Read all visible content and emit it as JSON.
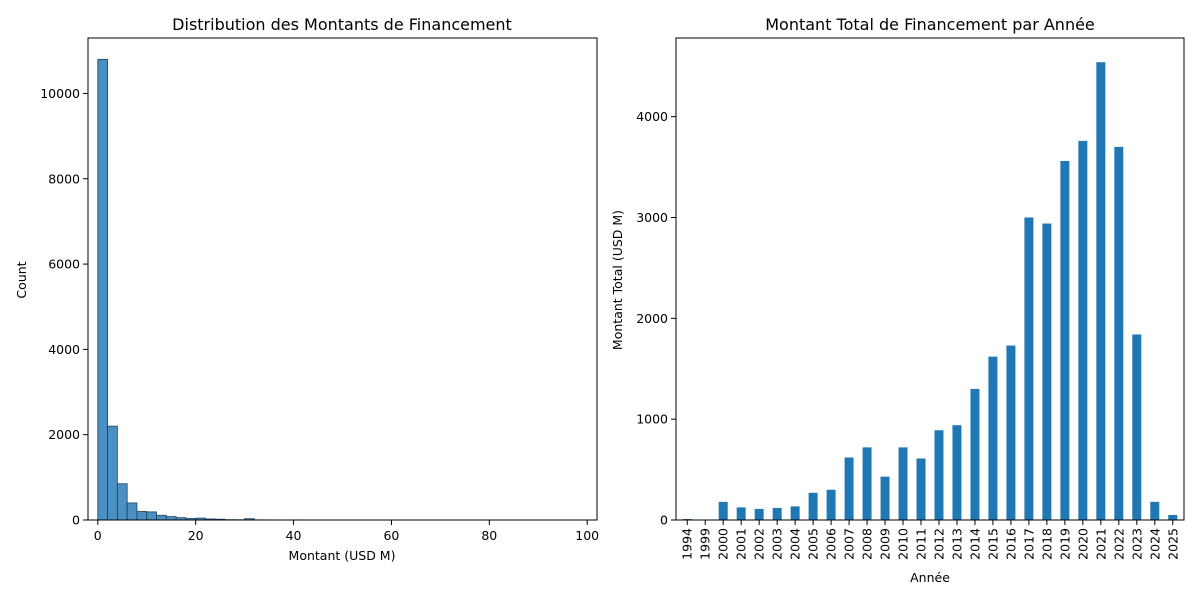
{
  "chart_data": [
    {
      "type": "bar",
      "kind": "histogram",
      "title": "Distribution des Montants de Financement",
      "xlabel": "Montant (USD M)",
      "ylabel": "Count",
      "xlim": [
        -2,
        102
      ],
      "ylim": [
        0,
        11300
      ],
      "xticks": [
        0,
        20,
        40,
        60,
        80,
        100
      ],
      "yticks": [
        0,
        2000,
        4000,
        6000,
        8000,
        10000
      ],
      "bin_width": 2,
      "bin_starts": [
        0,
        2,
        4,
        6,
        8,
        10,
        12,
        14,
        16,
        18,
        20,
        22,
        24,
        26,
        28,
        30,
        32,
        34,
        36,
        38,
        40,
        42,
        44,
        46,
        48,
        50,
        52,
        54,
        56,
        58,
        60,
        62,
        64,
        66,
        68,
        70,
        72,
        74,
        76,
        78,
        80,
        82,
        84,
        86,
        88,
        90,
        92,
        94,
        96,
        98
      ],
      "values": [
        10800,
        2200,
        850,
        400,
        200,
        190,
        110,
        80,
        55,
        35,
        45,
        25,
        18,
        8,
        6,
        30,
        4,
        3,
        2,
        2,
        3,
        2,
        1,
        1,
        1,
        2,
        1,
        1,
        1,
        1,
        2,
        1,
        1,
        1,
        1,
        1,
        1,
        1,
        1,
        1,
        1,
        1,
        1,
        1,
        1,
        1,
        1,
        1,
        1,
        1
      ],
      "color": "#4a90c2",
      "edge_color": "#1f3f5c"
    },
    {
      "type": "bar",
      "title": "Montant Total de Financement par Année",
      "xlabel": "Année",
      "ylabel": "Montant Total (USD M)",
      "ylim": [
        0,
        4780
      ],
      "yticks": [
        0,
        1000,
        2000,
        3000,
        4000
      ],
      "categories": [
        "1994",
        "1999",
        "2000",
        "2001",
        "2002",
        "2003",
        "2004",
        "2005",
        "2006",
        "2007",
        "2008",
        "2009",
        "2010",
        "2011",
        "2012",
        "2013",
        "2014",
        "2015",
        "2016",
        "2017",
        "2018",
        "2019",
        "2020",
        "2021",
        "2022",
        "2023",
        "2024",
        "2025"
      ],
      "values": [
        10,
        2,
        180,
        125,
        110,
        120,
        135,
        270,
        300,
        620,
        720,
        430,
        720,
        610,
        890,
        940,
        1300,
        1620,
        1730,
        3000,
        2940,
        3560,
        3760,
        4540,
        3700,
        1840,
        180,
        50
      ],
      "color": "#1f77b4"
    }
  ]
}
